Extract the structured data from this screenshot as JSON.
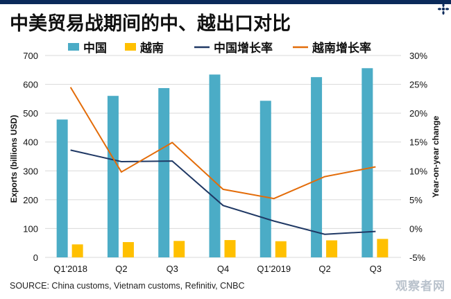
{
  "title": "中美贸易战期间的中、越出口对比",
  "source": "SOURCE: China customs, Vietnam customs, Refinitiv, CNBC",
  "watermark": "观察者网",
  "colors": {
    "china_bar": "#4bacc6",
    "vietnam_bar": "#ffc000",
    "china_line": "#1f3864",
    "vietnam_line": "#e36c09"
  },
  "chart_data": {
    "type": "bar",
    "categories": [
      "Q1'2018",
      "Q2",
      "Q3",
      "Q4",
      "Q1'2019",
      "Q2",
      "Q3"
    ],
    "series": [
      {
        "name": "中国",
        "kind": "bar",
        "axis": "left",
        "values": [
          478,
          560,
          587,
          634,
          543,
          625,
          656
        ]
      },
      {
        "name": "越南",
        "kind": "bar",
        "axis": "left",
        "values": [
          45,
          53,
          57,
          60,
          56,
          59,
          64
        ]
      },
      {
        "name": "中国增长率",
        "kind": "line",
        "axis": "right",
        "values": [
          13.6,
          11.6,
          11.7,
          4.0,
          1.3,
          -1.0,
          -0.5
        ]
      },
      {
        "name": "越南增长率",
        "kind": "line",
        "axis": "right",
        "values": [
          24.5,
          9.8,
          14.9,
          6.8,
          5.2,
          9.0,
          10.7
        ]
      }
    ],
    "ylabel": "Exports (billions USD)",
    "y2label": "Year-on-year change",
    "ylim": [
      0,
      700
    ],
    "y2lim": [
      -5,
      30
    ],
    "yticks": [
      "0",
      "100",
      "200",
      "300",
      "400",
      "500",
      "600",
      "700"
    ],
    "y2ticks": [
      "-5%",
      "0%",
      "5%",
      "10%",
      "15%",
      "20%",
      "25%",
      "30%"
    ],
    "legend_position": "top",
    "grid": true
  }
}
